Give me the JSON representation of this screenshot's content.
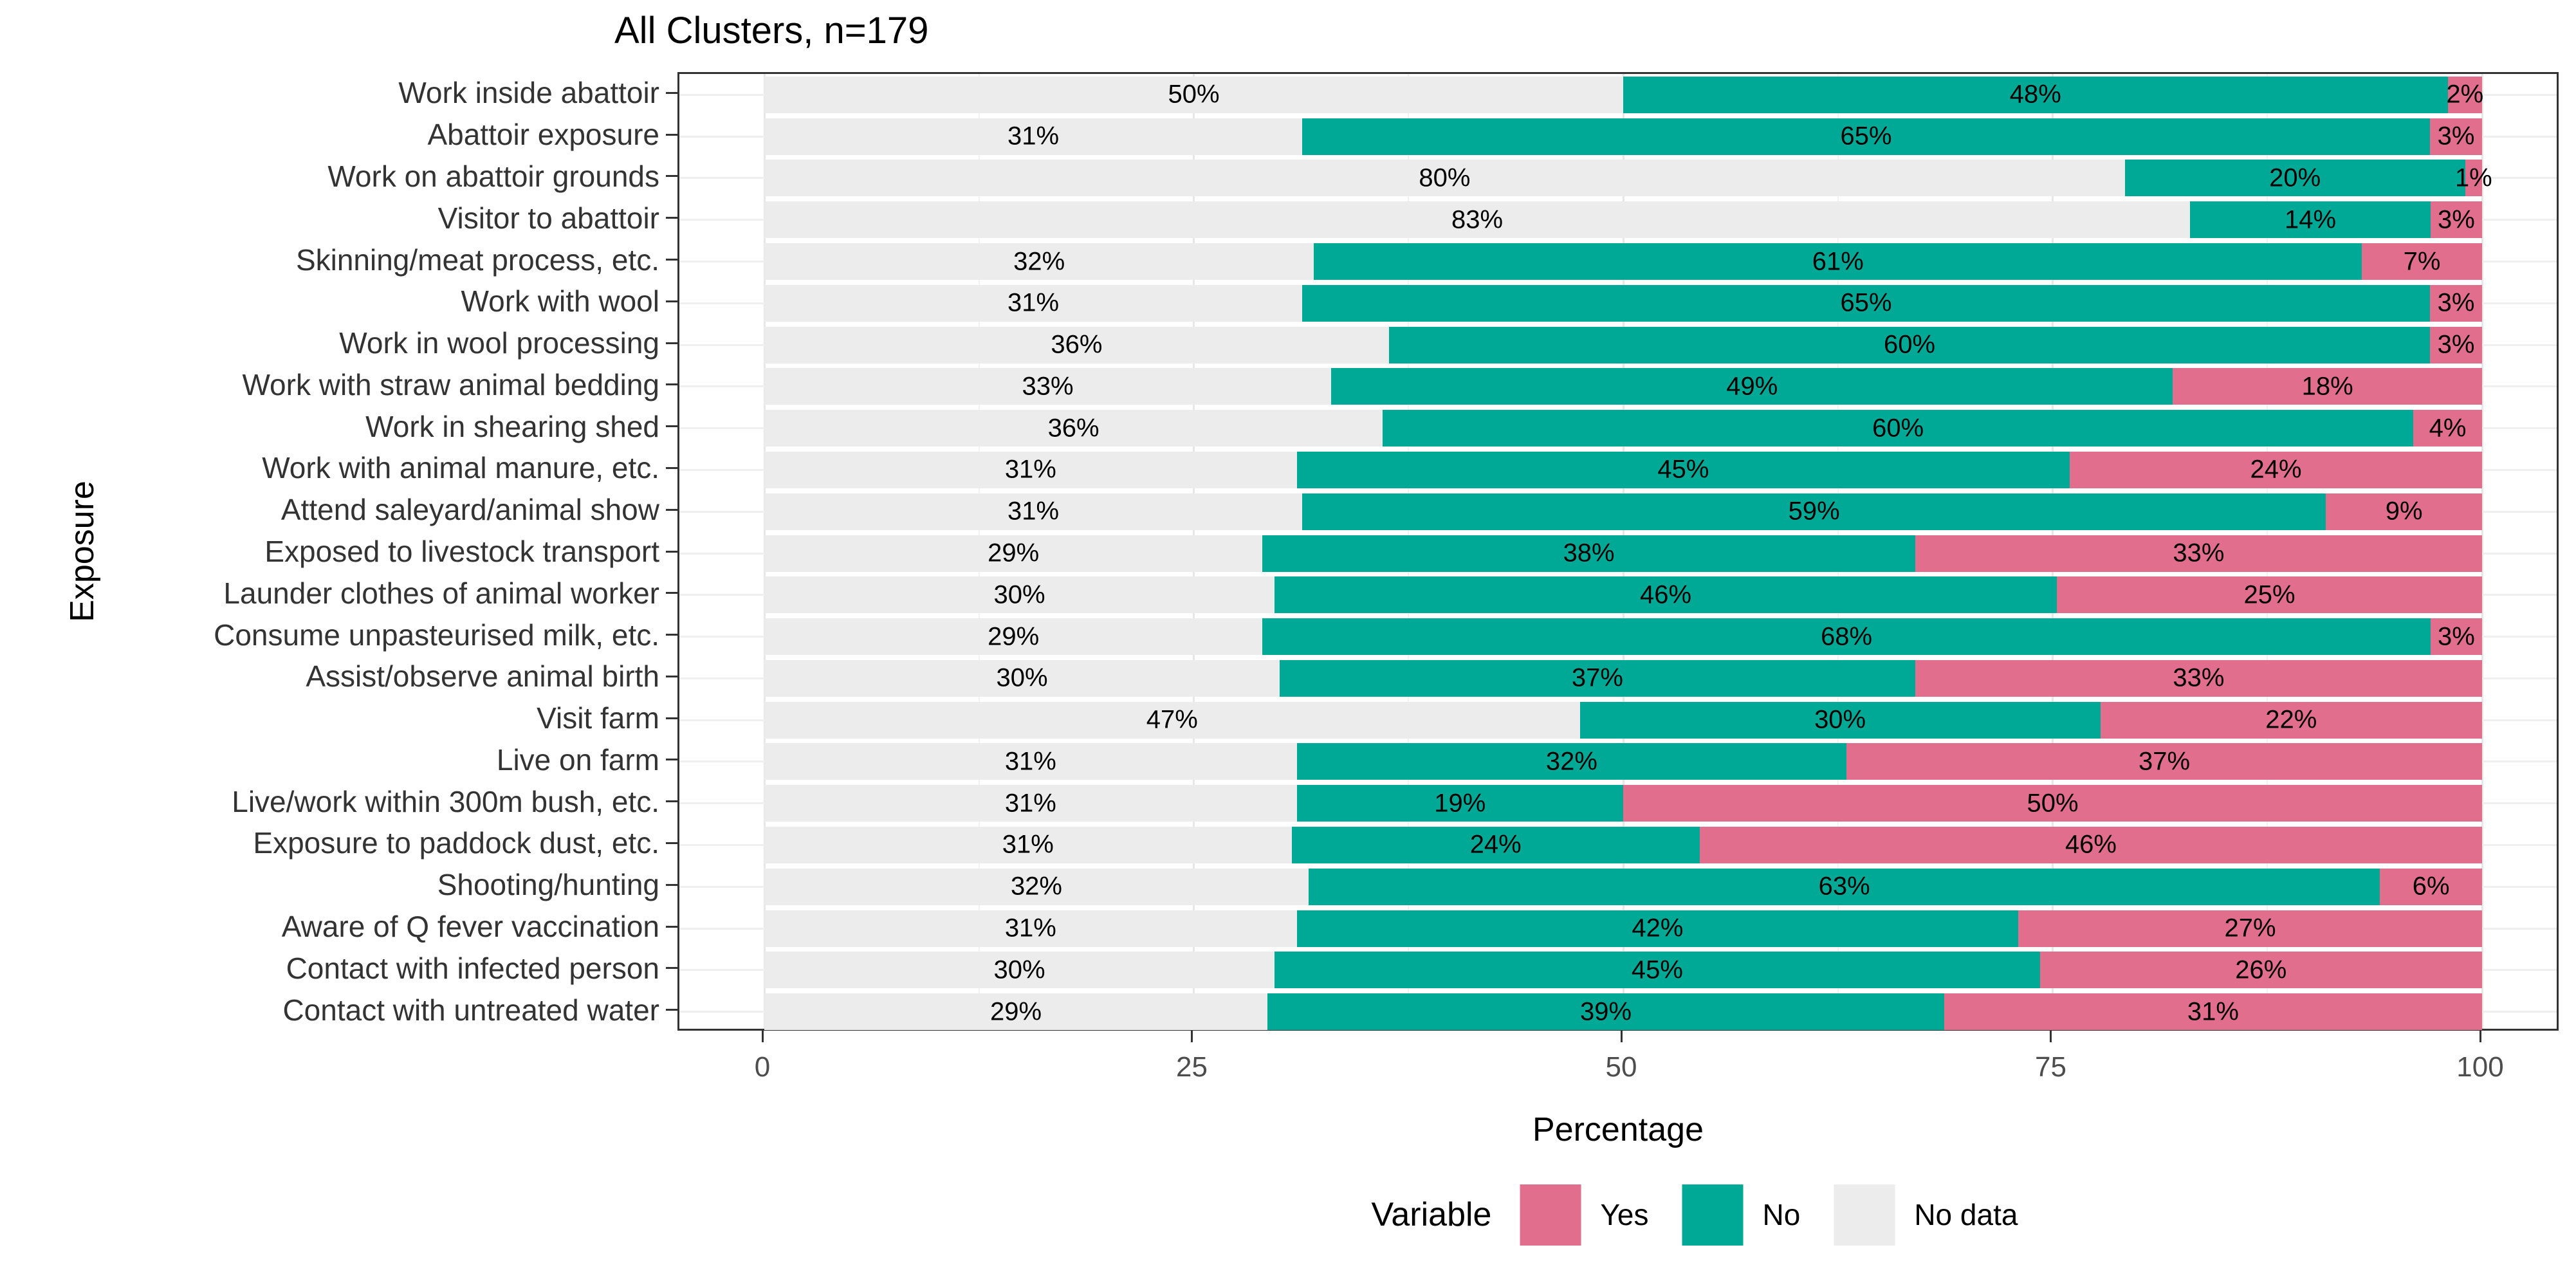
{
  "title": "All Clusters, n=179",
  "axes": {
    "x_label": "Percentage",
    "y_label": "Exposure",
    "x_ticks": [
      0,
      25,
      50,
      75,
      100
    ]
  },
  "legend": {
    "title": "Variable",
    "items": [
      {
        "label": "Yes",
        "color": "#E06E8C"
      },
      {
        "label": "No",
        "color": "#00A996"
      },
      {
        "label": "No data",
        "color": "#ECECEC"
      }
    ]
  },
  "colors": {
    "yes": "#E06E8C",
    "no": "#00A996",
    "no_data": "#ECECEC",
    "panel_border": "#333333",
    "h_gridline": "#EFEFEF",
    "v_gridline": "#E7E7E7",
    "axis_tick_text": "#4D4D4D",
    "category_text": "#333333",
    "bar_label_text": "#000000"
  },
  "chart_data": {
    "type": "bar",
    "orientation": "horizontal",
    "stacked": true,
    "title": "All Clusters, n=179",
    "xlabel": "Percentage",
    "ylabel": "Exposure",
    "xlim": [
      0,
      100
    ],
    "x_ticks": [
      0,
      25,
      50,
      75,
      100
    ],
    "grid": true,
    "legend_position": "bottom",
    "legend_title": "Variable",
    "legend_order": [
      "Yes",
      "No",
      "No data"
    ],
    "segment_order_left_to_right": [
      "No data",
      "No",
      "Yes"
    ],
    "bar_label_format": "value%",
    "categories": [
      "Work inside abattoir",
      "Abattoir exposure",
      "Work on abattoir grounds",
      "Visitor to abattoir",
      "Skinning/meat process, etc.",
      "Work with wool",
      "Work in wool processing",
      "Work with straw animal bedding",
      "Work in shearing shed",
      "Work with animal manure, etc.",
      "Attend saleyard/animal show",
      "Exposed to livestock transport",
      "Launder clothes of animal worker",
      "Consume unpasteurised milk, etc.",
      "Assist/observe animal birth",
      "Visit farm",
      "Live on farm",
      "Live/work within 300m bush, etc.",
      "Exposure to paddock dust, etc.",
      "Shooting/hunting",
      "Aware of Q fever vaccination",
      "Contact with infected person",
      "Contact with untreated water"
    ],
    "series": [
      {
        "name": "No data",
        "color": "#ECECEC",
        "values": [
          50,
          31,
          80,
          83,
          32,
          31,
          36,
          33,
          36,
          31,
          31,
          29,
          30,
          29,
          30,
          47,
          31,
          31,
          31,
          32,
          31,
          30,
          29
        ]
      },
      {
        "name": "No",
        "color": "#00A996",
        "values": [
          48,
          65,
          20,
          14,
          61,
          65,
          60,
          49,
          60,
          45,
          59,
          38,
          46,
          68,
          37,
          30,
          32,
          19,
          24,
          63,
          42,
          45,
          39
        ]
      },
      {
        "name": "Yes",
        "color": "#E06E8C",
        "values": [
          2,
          3,
          1,
          3,
          7,
          3,
          3,
          18,
          4,
          24,
          9,
          33,
          25,
          3,
          33,
          22,
          37,
          50,
          46,
          6,
          27,
          26,
          31
        ]
      }
    ]
  }
}
